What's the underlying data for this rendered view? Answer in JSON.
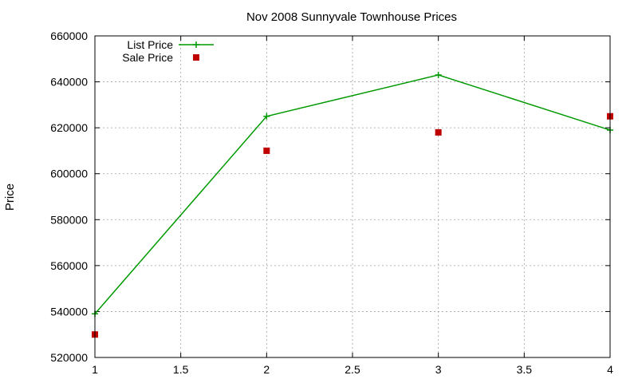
{
  "chart_data": {
    "type": "line",
    "title": "Nov 2008 Sunnyvale Townhouse Prices",
    "xlabel": "",
    "ylabel": "Price",
    "xlim": [
      1,
      4
    ],
    "ylim": [
      520000,
      660000
    ],
    "xticks": [
      1,
      1.5,
      2,
      2.5,
      3,
      3.5,
      4
    ],
    "yticks": [
      520000,
      540000,
      560000,
      580000,
      600000,
      620000,
      640000,
      660000
    ],
    "xtick_labels": [
      "1",
      "1.5",
      "2",
      "2.5",
      "3",
      "3.5",
      "4"
    ],
    "ytick_labels": [
      "520000",
      "540000",
      "560000",
      "580000",
      "600000",
      "620000",
      "640000",
      "660000"
    ],
    "grid": true,
    "legend_position": "top-left",
    "series": [
      {
        "name": "List Price",
        "style": "linespoints",
        "marker": "plus",
        "color": "#009900",
        "x": [
          1,
          2,
          3,
          4
        ],
        "y": [
          539000,
          625000,
          643000,
          619000
        ]
      },
      {
        "name": "Sale Price",
        "style": "points",
        "marker": "square",
        "color": "#c00000",
        "x": [
          1,
          2,
          3,
          4
        ],
        "y": [
          530000,
          610000,
          618000,
          625000
        ]
      }
    ]
  }
}
